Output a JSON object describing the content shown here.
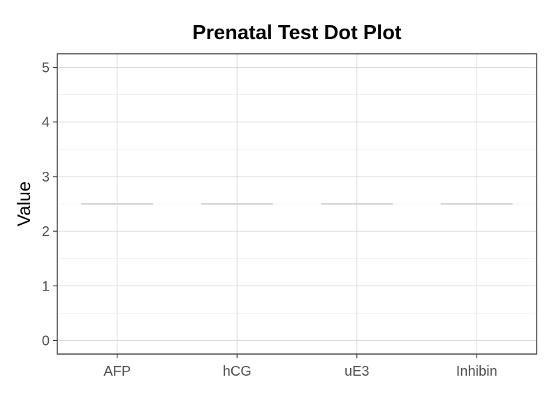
{
  "chart_data": {
    "type": "dot",
    "title": "Prenatal Test Dot Plot",
    "xlabel": "",
    "ylabel": "Value",
    "categories": [
      "AFP",
      "hCG",
      "uE3",
      "Inhibin"
    ],
    "ylim": [
      -0.25,
      5.25
    ],
    "yticks": [
      0,
      1,
      2,
      3,
      4,
      5
    ],
    "yminor": [
      0.5,
      1.5,
      2.5,
      3.5,
      4.5
    ],
    "series": [
      {
        "values": [
          2.5,
          2.5,
          2.5,
          2.5
        ]
      }
    ],
    "grid": true,
    "line_color": "#cccccc"
  }
}
